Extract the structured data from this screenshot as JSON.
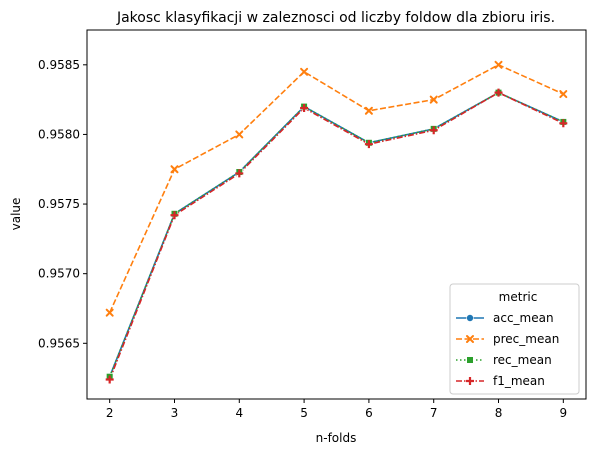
{
  "chart_data": {
    "type": "line",
    "title": "Jakosc klasyfikacji w zaleznosci od liczby foldow dla zbioru iris.",
    "xlabel": "n-folds",
    "ylabel": "value",
    "x": [
      2,
      3,
      4,
      5,
      6,
      7,
      8,
      9
    ],
    "x_ticks": [
      "2",
      "3",
      "4",
      "5",
      "6",
      "7",
      "8",
      "9"
    ],
    "y_ticks": [
      "0.9565",
      "0.9570",
      "0.9575",
      "0.9580",
      "0.9585"
    ],
    "y_tick_values": [
      0.9565,
      0.957,
      0.9575,
      0.958,
      0.9585
    ],
    "xlim": [
      1.65,
      9.35
    ],
    "ylim": [
      0.9561,
      0.95875
    ],
    "grid": false,
    "legend_title": "metric",
    "legend_position": "lower right",
    "series": [
      {
        "name": "acc_mean",
        "color": "#1f77b4",
        "marker": "circle",
        "dash": "solid",
        "values": [
          0.95626,
          0.95743,
          0.95773,
          0.9582,
          0.95794,
          0.95804,
          0.9583,
          0.95809
        ]
      },
      {
        "name": "prec_mean",
        "color": "#ff7f0e",
        "marker": "x",
        "dash": "dashed",
        "values": [
          0.95672,
          0.95775,
          0.958,
          0.95845,
          0.95817,
          0.95825,
          0.9585,
          0.95829
        ]
      },
      {
        "name": "rec_mean",
        "color": "#2ca02c",
        "marker": "square",
        "dash": "dotted",
        "values": [
          0.95626,
          0.95743,
          0.95773,
          0.9582,
          0.95794,
          0.95804,
          0.9583,
          0.95809
        ]
      },
      {
        "name": "f1_mean",
        "color": "#d62728",
        "marker": "plus",
        "dash": "dashdot",
        "values": [
          0.95624,
          0.95742,
          0.95772,
          0.95819,
          0.95793,
          0.95803,
          0.9583,
          0.95808
        ]
      }
    ]
  }
}
